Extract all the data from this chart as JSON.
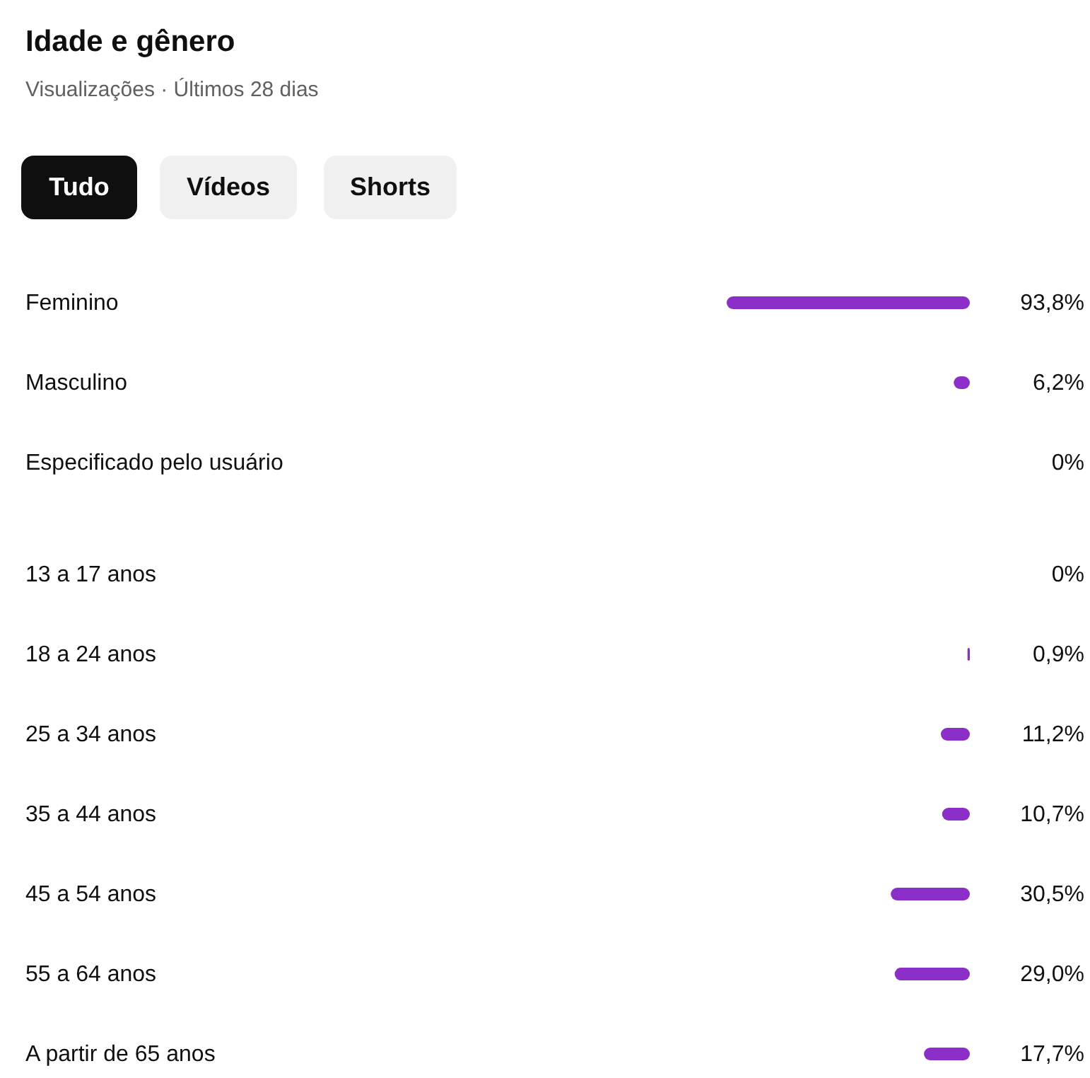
{
  "chart_data": [
    {
      "type": "bar",
      "orientation": "horizontal",
      "title": "Idade e gênero",
      "subtitle": "Visualizações · Últimos 28 dias",
      "annotations": [
        "Tudo",
        "Vídeos",
        "Shorts"
      ],
      "categories": [
        "Feminino",
        "Masculino",
        "Especificado pelo usuário"
      ],
      "values": [
        93.8,
        6.2,
        0
      ],
      "value_labels": [
        "93,8%",
        "6,2%",
        "0%"
      ],
      "color": "#8c2fc8"
    },
    {
      "type": "bar",
      "orientation": "horizontal",
      "categories": [
        "13 a 17 anos",
        "18 a 24 anos",
        "25 a 34 anos",
        "35 a 44 anos",
        "45 a 54 anos",
        "55 a 64 anos",
        "A partir de 65 anos"
      ],
      "values": [
        0,
        0.9,
        11.2,
        10.7,
        30.5,
        29.0,
        17.7
      ],
      "value_labels": [
        "0%",
        "0,9%",
        "11,2%",
        "10,7%",
        "30,5%",
        "29,0%",
        "17,7%"
      ],
      "color": "#8c2fc8"
    }
  ]
}
